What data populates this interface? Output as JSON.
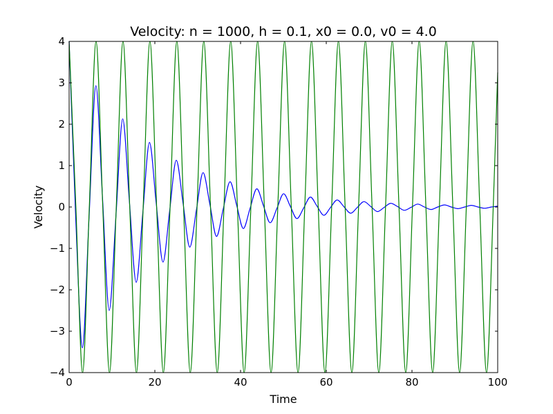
{
  "chart_data": {
    "type": "line",
    "title": "Velocity: n = 1000, h = 0.1, x0 = 0.0, v0 = 4.0",
    "xlabel": "Time",
    "ylabel": "Velocity",
    "xlim": [
      0,
      100
    ],
    "ylim": [
      -4,
      4
    ],
    "xticks": [
      0,
      20,
      40,
      60,
      80,
      100
    ],
    "yticks": [
      -4,
      -3,
      -2,
      -1,
      0,
      1,
      2,
      3,
      4
    ],
    "xtick_labels": [
      "0",
      "20",
      "40",
      "60",
      "80",
      "100"
    ],
    "ytick_labels": [
      "−4",
      "−3",
      "−2",
      "−1",
      "0",
      "1",
      "2",
      "3",
      "4"
    ],
    "grid": false,
    "series": [
      {
        "color": "#0000ff",
        "x": [
          0,
          1.55,
          3.1,
          4.65,
          6.25,
          7.8,
          9.35,
          10.95,
          12.5,
          14.05,
          15.65,
          17.2,
          18.75,
          20.3,
          21.9,
          23.45,
          25.0,
          26.6,
          28.15,
          29.7,
          31.25,
          32.85,
          34.4,
          35.95,
          37.55,
          39.1,
          40.65,
          42.2,
          43.8,
          45.35,
          46.9,
          48.5,
          50.05,
          51.6,
          53.15,
          54.75,
          56.3,
          57.85,
          59.45,
          61.0,
          62.55,
          64.1,
          65.7,
          67.25,
          68.8,
          70.4,
          71.95,
          73.5,
          75.05,
          76.65,
          78.2,
          79.75,
          81.35,
          82.9,
          84.45,
          86.0,
          87.6,
          89.15,
          90.7,
          92.3,
          93.85,
          95.4,
          96.95,
          98.55,
          100
        ],
        "y": [
          4.0,
          -0.3,
          -3.4,
          -0.25,
          2.93,
          0.2,
          -2.5,
          -0.17,
          2.13,
          0.15,
          -1.82,
          -0.13,
          1.56,
          0.11,
          -1.33,
          -0.1,
          1.13,
          0.08,
          -0.97,
          -0.07,
          0.83,
          0.06,
          -0.71,
          -0.05,
          0.61,
          0.04,
          -0.52,
          -0.04,
          0.44,
          0.03,
          -0.38,
          -0.03,
          0.32,
          0.02,
          -0.28,
          -0.02,
          0.24,
          0.02,
          -0.2,
          -0.01,
          0.17,
          0.01,
          -0.15,
          -0.01,
          0.13,
          0.01,
          -0.11,
          -0.01,
          0.09,
          0.01,
          -0.08,
          -0.01,
          0.07,
          0.0,
          -0.06,
          0.0,
          0.05,
          0.0,
          -0.04,
          0.0,
          0.04,
          0.0,
          -0.03,
          0.0,
          0.02
        ]
      },
      {
        "color": "#008000",
        "x": [
          0,
          1.575,
          3.14,
          4.71,
          6.28,
          7.85,
          9.42,
          11.0,
          12.57,
          14.14,
          15.71,
          17.28,
          18.85,
          20.42,
          21.99,
          23.56,
          25.13,
          26.7,
          28.27,
          29.85,
          31.42,
          32.99,
          34.56,
          36.13,
          37.7,
          39.27,
          40.84,
          42.41,
          43.98,
          45.55,
          47.12,
          48.69,
          50.27,
          51.84,
          53.41,
          54.98,
          56.55,
          58.12,
          59.69,
          61.26,
          62.83,
          64.4,
          65.97,
          67.54,
          69.12,
          70.69,
          72.26,
          73.83,
          75.4,
          76.97,
          78.54,
          80.11,
          81.68,
          83.25,
          84.82,
          86.39,
          87.96,
          89.54,
          91.11,
          92.68,
          94.25,
          95.82,
          97.39,
          98.96,
          100
        ],
        "y": [
          4.0,
          0.0,
          -4.0,
          0.0,
          4.0,
          0.0,
          -4.0,
          0.0,
          4.0,
          0.0,
          -4.0,
          0.0,
          4.0,
          0.0,
          -4.0,
          0.0,
          4.0,
          0.0,
          -4.0,
          0.0,
          4.0,
          0.0,
          -4.0,
          0.0,
          4.0,
          0.0,
          -4.0,
          0.0,
          4.0,
          0.0,
          -4.0,
          0.0,
          4.0,
          0.0,
          -4.0,
          0.0,
          4.0,
          0.0,
          -4.0,
          0.0,
          4.0,
          0.0,
          -4.0,
          0.0,
          4.0,
          0.0,
          -4.0,
          0.0,
          4.0,
          0.0,
          -4.0,
          0.0,
          4.0,
          0.0,
          -4.0,
          0.0,
          4.0,
          0.0,
          -4.0,
          0.0,
          4.0,
          0.0,
          -4.0,
          0.0,
          3.25
        ]
      }
    ]
  }
}
